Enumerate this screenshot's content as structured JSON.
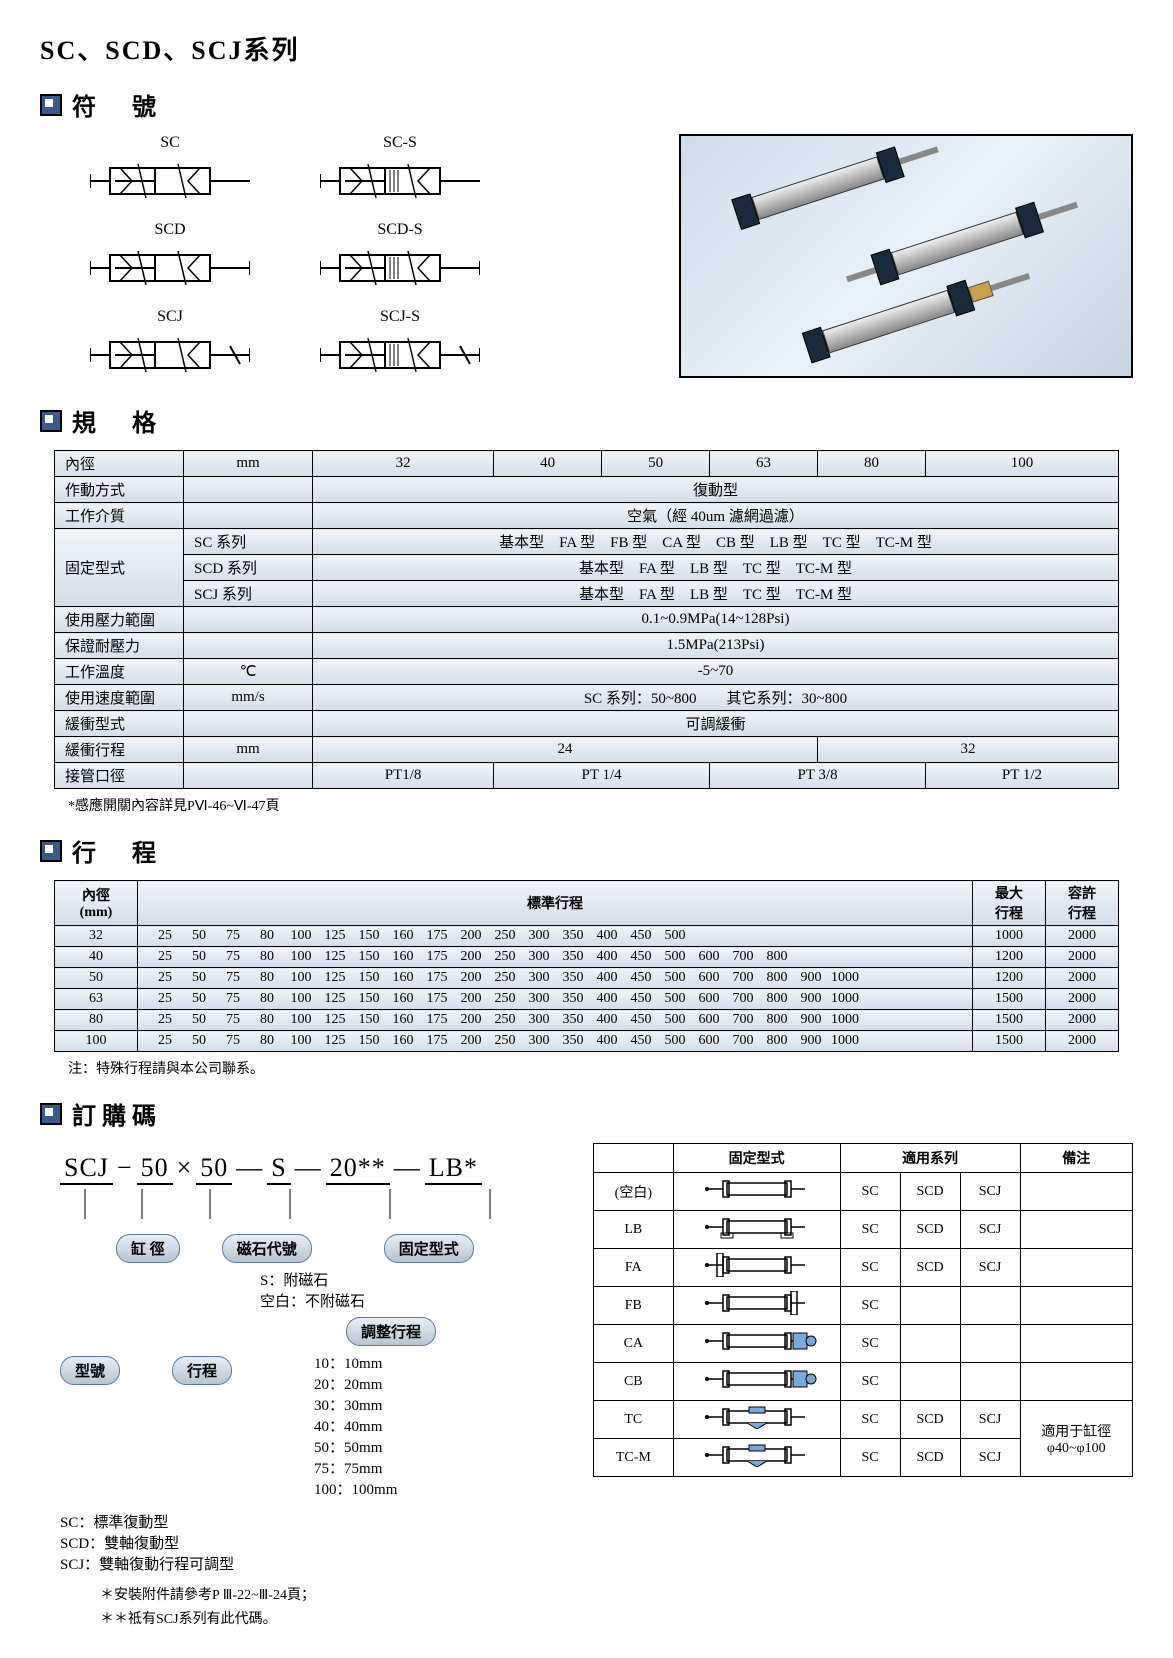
{
  "page_title": "SC、SCD、SCJ系列",
  "sections": {
    "symbols": "符　號",
    "specs": "規　格",
    "stroke": "行　程",
    "order": "訂購碼"
  },
  "symbol_labels": [
    "SC",
    "SC-S",
    "SCD",
    "SCD-S",
    "SCJ",
    "SCJ-S"
  ],
  "spec_table": {
    "header_unit": "mm",
    "bores": [
      "32",
      "40",
      "50",
      "63",
      "80",
      "100"
    ],
    "rows": [
      {
        "label": "內徑",
        "unit": "mm",
        "cells": [
          "32",
          "40",
          "50",
          "63",
          "80",
          "100"
        ]
      },
      {
        "label": "作動方式",
        "span_value": "復動型"
      },
      {
        "label": "工作介質",
        "span_value": "空氣（經 40um 濾網過濾）"
      },
      {
        "label": "固定型式",
        "sub": [
          {
            "series": "SC 系列",
            "value": "基本型　FA 型　FB 型　CA 型　CB 型　LB 型　TC 型　TC-M 型"
          },
          {
            "series": "SCD 系列",
            "value": "基本型　FA 型　LB 型　TC 型　TC-M 型"
          },
          {
            "series": "SCJ 系列",
            "value": "基本型　FA 型　LB 型　TC 型　TC-M 型"
          }
        ]
      },
      {
        "label": "使用壓力範圍",
        "span_value": "0.1~0.9MPa(14~128Psi)"
      },
      {
        "label": "保證耐壓力",
        "span_value": "1.5MPa(213Psi)"
      },
      {
        "label": "工作溫度",
        "unit": "℃",
        "span_value": "-5~70"
      },
      {
        "label": "使用速度範圍",
        "unit": "mm/s",
        "span_value": "SC 系列：50~800　　其它系列：30~800"
      },
      {
        "label": "緩衝型式",
        "span_value": "可調緩衝"
      },
      {
        "label": "緩衝行程",
        "unit": "mm",
        "cells_merged": [
          {
            "span": 4,
            "val": "24"
          },
          {
            "span": 2,
            "val": "32"
          }
        ]
      },
      {
        "label": "接管口徑",
        "cells_merged": [
          {
            "span": 1,
            "val": "PT1/8"
          },
          {
            "span": 2,
            "val": "PT 1/4"
          },
          {
            "span": 2,
            "val": "PT 3/8"
          },
          {
            "span": 1,
            "val": "PT 1/2"
          }
        ]
      }
    ],
    "note": "*感應開關內容詳見PⅥ-46~Ⅵ-47頁"
  },
  "stroke_table": {
    "header_bore": "內徑\n(mm)",
    "header_std": "標準行程",
    "header_max": "最大\n行程",
    "header_allow": "容許\n行程",
    "rows": [
      {
        "bore": "32",
        "strokes": [
          25,
          50,
          75,
          80,
          100,
          125,
          150,
          160,
          175,
          200,
          250,
          300,
          350,
          400,
          450,
          500
        ],
        "max": 1000,
        "allow": 2000
      },
      {
        "bore": "40",
        "strokes": [
          25,
          50,
          75,
          80,
          100,
          125,
          150,
          160,
          175,
          200,
          250,
          300,
          350,
          400,
          450,
          500,
          600,
          700,
          800
        ],
        "max": 1200,
        "allow": 2000
      },
      {
        "bore": "50",
        "strokes": [
          25,
          50,
          75,
          80,
          100,
          125,
          150,
          160,
          175,
          200,
          250,
          300,
          350,
          400,
          450,
          500,
          600,
          700,
          800,
          900,
          1000
        ],
        "max": 1200,
        "allow": 2000
      },
      {
        "bore": "63",
        "strokes": [
          25,
          50,
          75,
          80,
          100,
          125,
          150,
          160,
          175,
          200,
          250,
          300,
          350,
          400,
          450,
          500,
          600,
          700,
          800,
          900,
          1000
        ],
        "max": 1500,
        "allow": 2000
      },
      {
        "bore": "80",
        "strokes": [
          25,
          50,
          75,
          80,
          100,
          125,
          150,
          160,
          175,
          200,
          250,
          300,
          350,
          400,
          450,
          500,
          600,
          700,
          800,
          900,
          1000
        ],
        "max": 1500,
        "allow": 2000
      },
      {
        "bore": "100",
        "strokes": [
          25,
          50,
          75,
          80,
          100,
          125,
          150,
          160,
          175,
          200,
          250,
          300,
          350,
          400,
          450,
          500,
          600,
          700,
          800,
          900,
          1000
        ],
        "max": 1500,
        "allow": 2000
      }
    ],
    "note": "注：特殊行程請與本公司聯系。"
  },
  "order": {
    "code_segments": [
      "SCJ",
      "50",
      "50",
      "S",
      "20**",
      "LB*"
    ],
    "code_separators": [
      "−",
      "×",
      "—",
      "—",
      "—"
    ],
    "pills": {
      "model": "型號",
      "bore": "缸 徑",
      "stroke": "行程",
      "magnet": "磁石代號",
      "adjust": "調整行程",
      "mount": "固定型式"
    },
    "magnet_desc": [
      "S：附磁石",
      "空白：不附磁石"
    ],
    "adjust_desc": [
      "10：10mm",
      "20：20mm",
      "30：30mm",
      "40：40mm",
      "50：50mm",
      "75：75mm",
      "100：100mm"
    ],
    "model_desc": [
      "SC：標準復動型",
      "SCD：雙軸復動型",
      "SCJ：雙軸復動行程可調型"
    ],
    "footnotes": [
      "＊安裝附件請參考P Ⅲ-22~Ⅲ-24頁；",
      "＊＊祗有SCJ系列有此代碼。"
    ]
  },
  "mount_table": {
    "headers": [
      "",
      "固定型式",
      "適用系列",
      "",
      "",
      "備注"
    ],
    "applicable_series_cols": [
      "SC",
      "SCD",
      "SCJ"
    ],
    "rows": [
      {
        "code": "(空白)",
        "series": [
          "SC",
          "SCD",
          "SCJ"
        ],
        "note": ""
      },
      {
        "code": "LB",
        "series": [
          "SC",
          "SCD",
          "SCJ"
        ],
        "note": ""
      },
      {
        "code": "FA",
        "series": [
          "SC",
          "SCD",
          "SCJ"
        ],
        "note": ""
      },
      {
        "code": "FB",
        "series": [
          "SC",
          "",
          ""
        ],
        "note": ""
      },
      {
        "code": "CA",
        "series": [
          "SC",
          "",
          ""
        ],
        "note": ""
      },
      {
        "code": "CB",
        "series": [
          "SC",
          "",
          ""
        ],
        "note": ""
      },
      {
        "code": "TC",
        "series": [
          "SC",
          "SCD",
          "SCJ"
        ],
        "note_span": "適用于缸徑\nφ40~φ100"
      },
      {
        "code": "TC-M",
        "series": [
          "SC",
          "SCD",
          "SCJ"
        ],
        "note": ""
      }
    ]
  }
}
